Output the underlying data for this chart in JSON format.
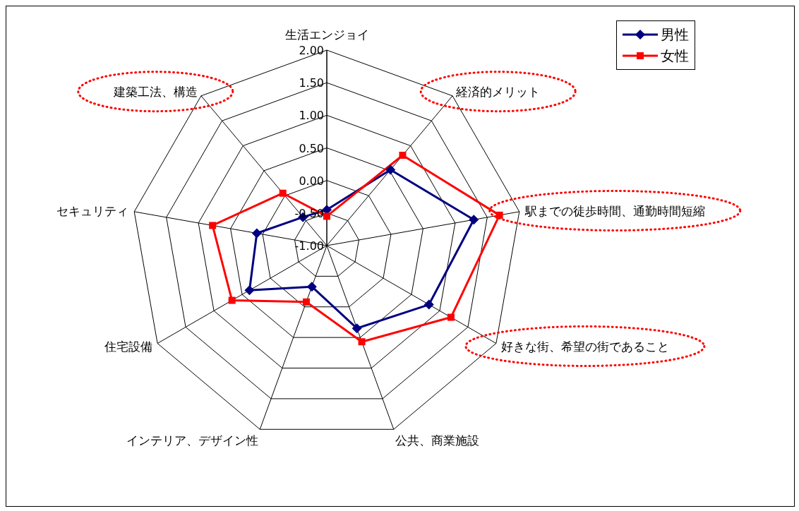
{
  "chart_data": {
    "type": "radar",
    "categories": [
      "生活エンジョイ",
      "経済的メリット",
      "駅までの徒歩時間、通勤時間短縮",
      "好きな街、希望の街であること",
      "公共、商業施設",
      "インテリア、デザイン性",
      "住宅設備",
      "セキュリティ",
      "建築工法、構造"
    ],
    "series": [
      {
        "name": "男性",
        "color": "#000080",
        "marker": "diamond",
        "values": [
          -0.45,
          0.52,
          1.29,
          0.81,
          0.35,
          -0.33,
          0.37,
          0.09,
          -0.43
        ]
      },
      {
        "name": "女性",
        "color": "#ff0000",
        "marker": "square",
        "values": [
          -0.55,
          0.81,
          1.69,
          1.2,
          0.57,
          -0.08,
          0.68,
          0.78,
          0.05
        ]
      }
    ],
    "ylim": [
      -1,
      2
    ],
    "yticks": [
      {
        "value": -1,
        "label": "-1.00"
      },
      {
        "value": -0.5,
        "label": "-0.50"
      },
      {
        "value": 0,
        "label": "0.00"
      },
      {
        "value": 0.5,
        "label": "0.50"
      },
      {
        "value": 1,
        "label": "1.00"
      },
      {
        "value": 1.5,
        "label": "1.50"
      },
      {
        "value": 2,
        "label": "2.00"
      }
    ],
    "legend": "top right",
    "grid": true
  }
}
